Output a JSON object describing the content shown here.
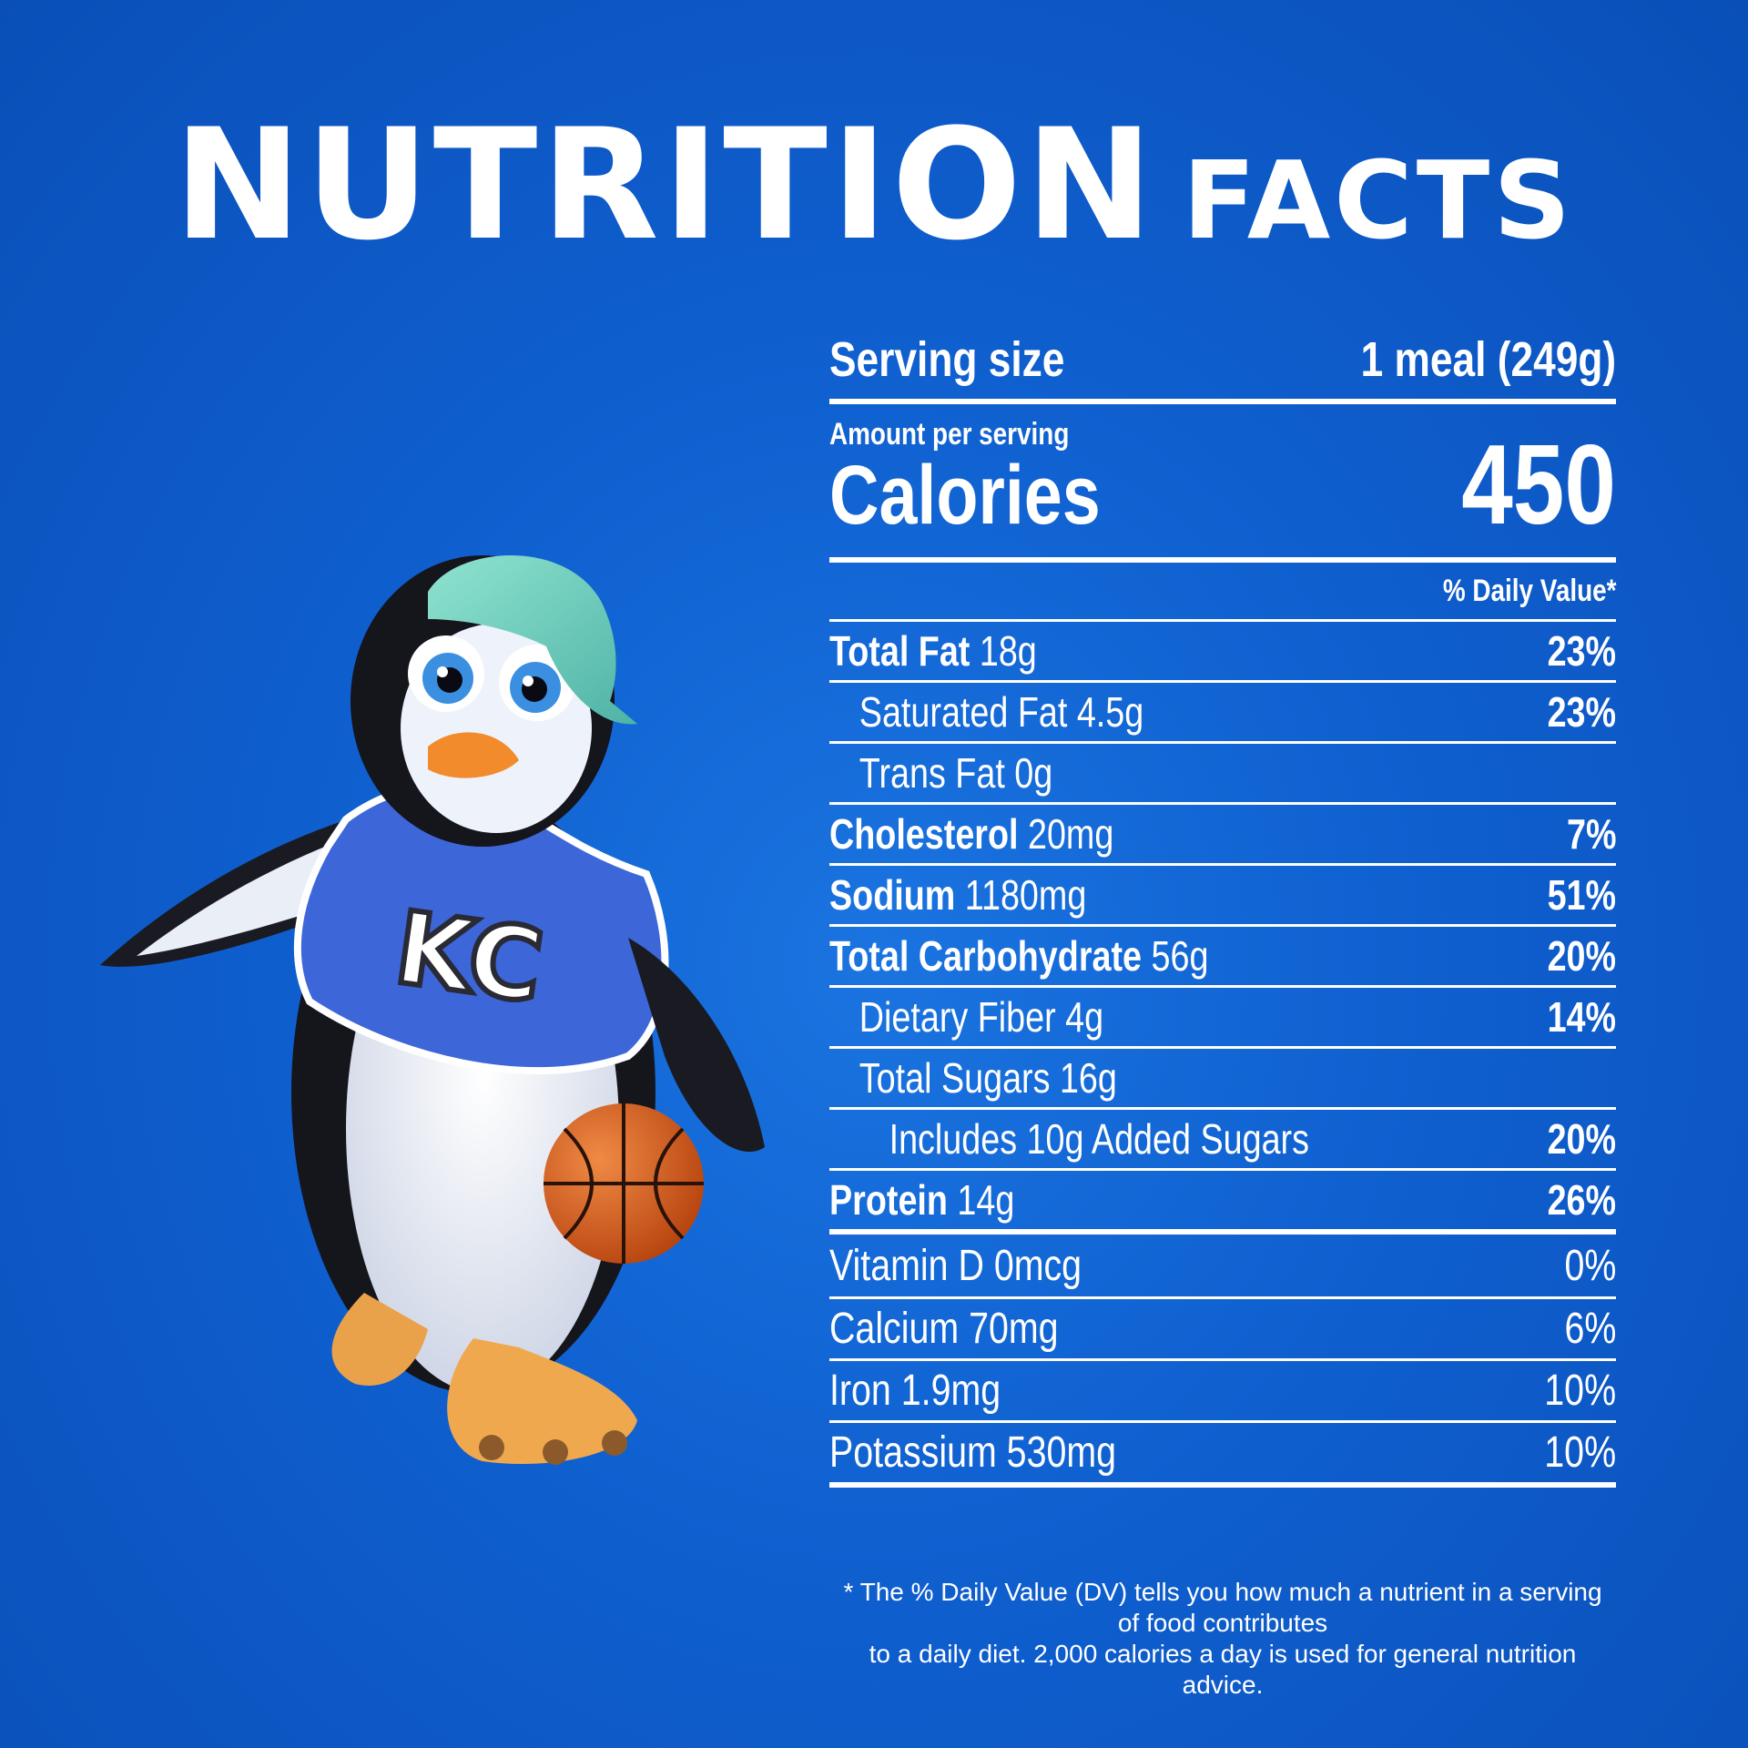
{
  "title": {
    "main": "NUTRITION",
    "sub": "FACTS"
  },
  "serving": {
    "label": "Serving size",
    "value": "1 meal (249g)"
  },
  "amount_per_serving": "Amount per serving",
  "calories": {
    "label": "Calories",
    "value": "450"
  },
  "dv_header": "% Daily Value*",
  "nutrients": [
    {
      "name": "Total Fat",
      "amount": "18g",
      "dv": "23%"
    },
    {
      "name": "Saturated Fat",
      "amount": "4.5g",
      "dv": "23%"
    },
    {
      "name": "Trans Fat",
      "amount": "0g",
      "dv": ""
    },
    {
      "name": "Cholesterol",
      "amount": "20mg",
      "dv": "7%"
    },
    {
      "name": "Sodium",
      "amount": "1180mg",
      "dv": "51%"
    },
    {
      "name": "Total Carbohydrate",
      "amount": "56g",
      "dv": "20%"
    },
    {
      "name": "Dietary Fiber",
      "amount": "4g",
      "dv": "14%"
    },
    {
      "name": "Total Sugars",
      "amount": "16g",
      "dv": ""
    },
    {
      "name": "Includes 10g Added Sugars",
      "amount": "",
      "dv": "20%"
    },
    {
      "name": "Protein",
      "amount": "14g",
      "dv": "26%"
    }
  ],
  "vitamins": [
    {
      "label": "Vitamin D 0mcg",
      "dv": "0%"
    },
    {
      "label": "Calcium 70mg",
      "dv": "6%"
    },
    {
      "label": "Iron 1.9mg",
      "dv": "10%"
    },
    {
      "label": "Potassium 530mg",
      "dv": "10%"
    }
  ],
  "footnote": {
    "line1": "* The % Daily Value (DV) tells you how much a nutrient in a serving of food contributes",
    "line2": "to a daily diet. 2,000 calories a day is used for general nutrition advice."
  },
  "mascot": {
    "jersey_text": "KC"
  },
  "colors": {
    "background": "#0f5fcf",
    "text": "#ffffff",
    "ball": "#e0621f",
    "cap": "#7fd6c4"
  }
}
